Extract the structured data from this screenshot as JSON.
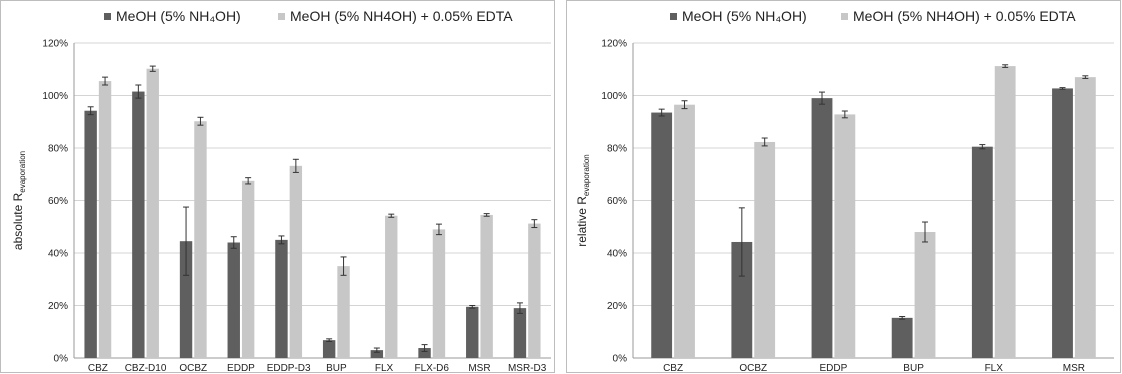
{
  "chart_data": [
    {
      "type": "bar",
      "ylabel": "absolute R",
      "ylabel_subscript": "evaporation",
      "ylim": [
        0,
        120
      ],
      "yticks": [
        "0%",
        "20%",
        "40%",
        "60%",
        "80%",
        "100%",
        "120%"
      ],
      "grid": true,
      "legend_placement": "top",
      "categories": [
        "CBZ",
        "CBZ-D10",
        "OCBZ",
        "EDDP",
        "EDDP-D3",
        "BUP",
        "FLX",
        "FLX-D6",
        "MSR",
        "MSR-D3"
      ],
      "series": [
        {
          "name": "MeOH (5% NH₄OH)",
          "color": "#5f5f5f",
          "values": [
            94.2,
            101.5,
            44.5,
            44.0,
            45.0,
            6.8,
            3.0,
            3.8,
            19.5,
            19.0
          ],
          "errors": [
            1.5,
            2.5,
            13.0,
            2.2,
            1.5,
            0.5,
            0.8,
            1.3,
            0.5,
            2.0
          ]
        },
        {
          "name": "MeOH (5% NH4OH) + 0.05% EDTA",
          "color": "#c7c7c7",
          "values": [
            105.5,
            110.2,
            90.2,
            67.5,
            73.2,
            35.0,
            54.2,
            49.0,
            54.5,
            51.2
          ],
          "errors": [
            1.5,
            1.0,
            1.5,
            1.2,
            2.5,
            3.5,
            0.6,
            2.0,
            0.5,
            1.5
          ]
        }
      ]
    },
    {
      "type": "bar",
      "ylabel": "relative R",
      "ylabel_subscript": "evaporation",
      "ylim": [
        0,
        120
      ],
      "yticks": [
        "0%",
        "20%",
        "40%",
        "60%",
        "80%",
        "100%",
        "120%"
      ],
      "grid": true,
      "legend_placement": "top",
      "categories": [
        "CBZ",
        "OCBZ",
        "EDDP",
        "BUP",
        "FLX",
        "MSR"
      ],
      "series": [
        {
          "name": "MeOH (5% NH₄OH)",
          "color": "#5f5f5f",
          "values": [
            93.5,
            44.2,
            99.0,
            15.3,
            80.5,
            102.7
          ],
          "errors": [
            1.3,
            13.0,
            2.3,
            0.5,
            0.8,
            0.3
          ]
        },
        {
          "name": "MeOH (5% NH4OH) + 0.05% EDTA",
          "color": "#c7c7c7",
          "values": [
            96.5,
            82.3,
            92.8,
            48.0,
            111.2,
            107.0
          ],
          "errors": [
            1.5,
            1.5,
            1.3,
            3.8,
            0.5,
            0.5
          ]
        }
      ]
    }
  ]
}
